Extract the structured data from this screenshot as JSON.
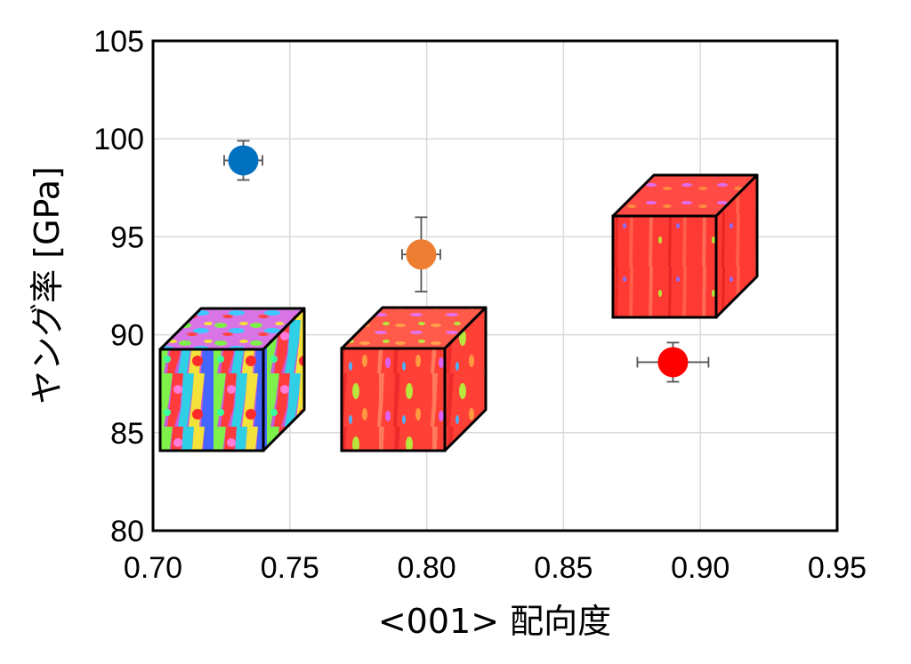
{
  "chart_data": {
    "type": "scatter",
    "title": "",
    "xlabel": "<001> 配向度",
    "ylabel": "ヤング率 [GPa]",
    "xlim": [
      0.7,
      0.95
    ],
    "ylim": [
      80,
      105
    ],
    "x_ticks": [
      "0.70",
      "0.75",
      "0.80",
      "0.85",
      "0.90",
      "0.95"
    ],
    "y_ticks": [
      "80",
      "85",
      "90",
      "95",
      "100",
      "105"
    ],
    "grid": true,
    "legend": "none",
    "series": [
      {
        "color": "#0070c0",
        "x": 0.733,
        "y": 98.9,
        "x_err": 0.007,
        "y_err": 1.0
      },
      {
        "color": "#ed7d31",
        "x": 0.798,
        "y": 94.1,
        "x_err": 0.007,
        "y_err": 1.9
      },
      {
        "color": "#ff0000",
        "x": 0.89,
        "y": 88.6,
        "x_err": 0.013,
        "y_err": 1.0
      }
    ],
    "annotations": [
      {
        "type": "microstructure-cube",
        "texture": "mixed-orientation",
        "near_point": 0
      },
      {
        "type": "microstructure-cube",
        "texture": "partly-oriented",
        "near_point": 1
      },
      {
        "type": "microstructure-cube",
        "texture": "strongly-oriented",
        "near_point": 2
      }
    ]
  }
}
